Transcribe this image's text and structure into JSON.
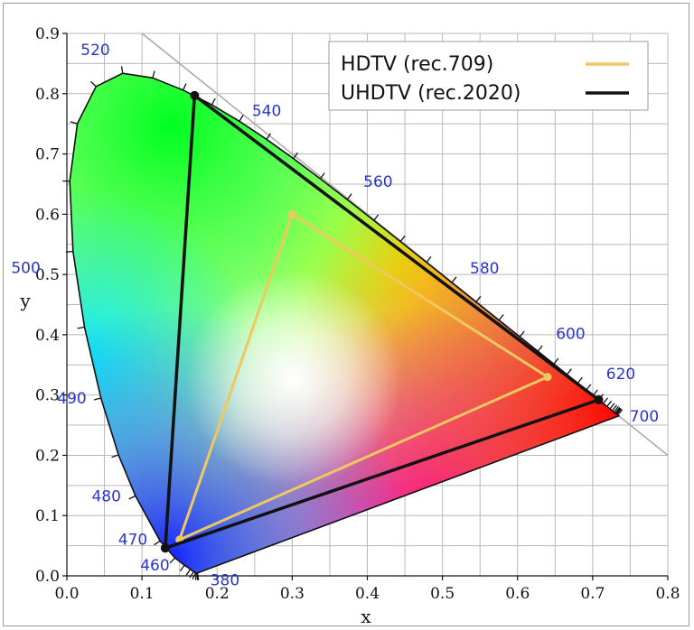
{
  "chart_data": {
    "type": "scatter",
    "title": "",
    "xlabel": "x",
    "ylabel": "y",
    "xlim": [
      0.0,
      0.8
    ],
    "ylim": [
      0.0,
      0.9
    ],
    "grid": true,
    "x_ticks": [
      "0.0",
      "0.1",
      "0.2",
      "0.3",
      "0.4",
      "0.5",
      "0.6",
      "0.7",
      "0.8"
    ],
    "y_ticks": [
      "0.0",
      "0.1",
      "0.2",
      "0.3",
      "0.4",
      "0.5",
      "0.6",
      "0.7",
      "0.8",
      "0.9"
    ],
    "legend_position": "top-right",
    "spectral_locus": {
      "x": [
        0.1741,
        0.1738,
        0.1736,
        0.1733,
        0.1726,
        0.1714,
        0.1689,
        0.1644,
        0.1566,
        0.144,
        0.1241,
        0.0913,
        0.0687,
        0.0454,
        0.0235,
        0.0082,
        0.0039,
        0.0139,
        0.0389,
        0.0743,
        0.1142,
        0.1547,
        0.1929,
        0.2296,
        0.2658,
        0.3016,
        0.3373,
        0.3731,
        0.4087,
        0.4441,
        0.4788,
        0.5125,
        0.5448,
        0.5752,
        0.6029,
        0.627,
        0.6482,
        0.6658,
        0.6801,
        0.6915,
        0.7006,
        0.7079,
        0.714,
        0.719,
        0.723,
        0.726,
        0.7283,
        0.73,
        0.7311,
        0.732,
        0.7334,
        0.7347
      ],
      "y": [
        0.005,
        0.0049,
        0.0049,
        0.0048,
        0.0048,
        0.0051,
        0.0069,
        0.0109,
        0.0177,
        0.0297,
        0.0578,
        0.1327,
        0.2007,
        0.295,
        0.4127,
        0.5384,
        0.6548,
        0.7502,
        0.812,
        0.8338,
        0.8262,
        0.8059,
        0.7816,
        0.7543,
        0.7243,
        0.6923,
        0.6589,
        0.6245,
        0.5896,
        0.5547,
        0.5202,
        0.4866,
        0.4544,
        0.4242,
        0.3965,
        0.3725,
        0.3514,
        0.334,
        0.3197,
        0.3083,
        0.2993,
        0.292,
        0.2859,
        0.2809,
        0.277,
        0.274,
        0.2717,
        0.27,
        0.2689,
        0.268,
        0.2666,
        0.2653
      ]
    },
    "white_point": {
      "x": 0.3127,
      "y": 0.329
    },
    "series": [
      {
        "name": "HDTV (rec.709)",
        "color": "#f0c860",
        "x": [
          0.64,
          0.3,
          0.15
        ],
        "y": [
          0.33,
          0.6,
          0.06
        ]
      },
      {
        "name": "UHDTV (rec.2020)",
        "color": "#111111",
        "x": [
          0.708,
          0.17,
          0.131
        ],
        "y": [
          0.292,
          0.797,
          0.046
        ]
      }
    ],
    "annotations": [
      {
        "text": "380",
        "x": 0.1741,
        "y": 0.005
      },
      {
        "text": "460",
        "x": 0.144,
        "y": 0.0297
      },
      {
        "text": "470",
        "x": 0.1241,
        "y": 0.0578
      },
      {
        "text": "480",
        "x": 0.0913,
        "y": 0.1327
      },
      {
        "text": "490",
        "x": 0.0454,
        "y": 0.295
      },
      {
        "text": "500",
        "x": 0.0082,
        "y": 0.5384
      },
      {
        "text": "520",
        "x": 0.0743,
        "y": 0.8338
      },
      {
        "text": "540",
        "x": 0.2296,
        "y": 0.7543
      },
      {
        "text": "560",
        "x": 0.3731,
        "y": 0.6245
      },
      {
        "text": "580",
        "x": 0.5125,
        "y": 0.4866
      },
      {
        "text": "600",
        "x": 0.627,
        "y": 0.3725
      },
      {
        "text": "620",
        "x": 0.6915,
        "y": 0.3083
      },
      {
        "text": "700",
        "x": 0.7347,
        "y": 0.2653
      }
    ]
  }
}
